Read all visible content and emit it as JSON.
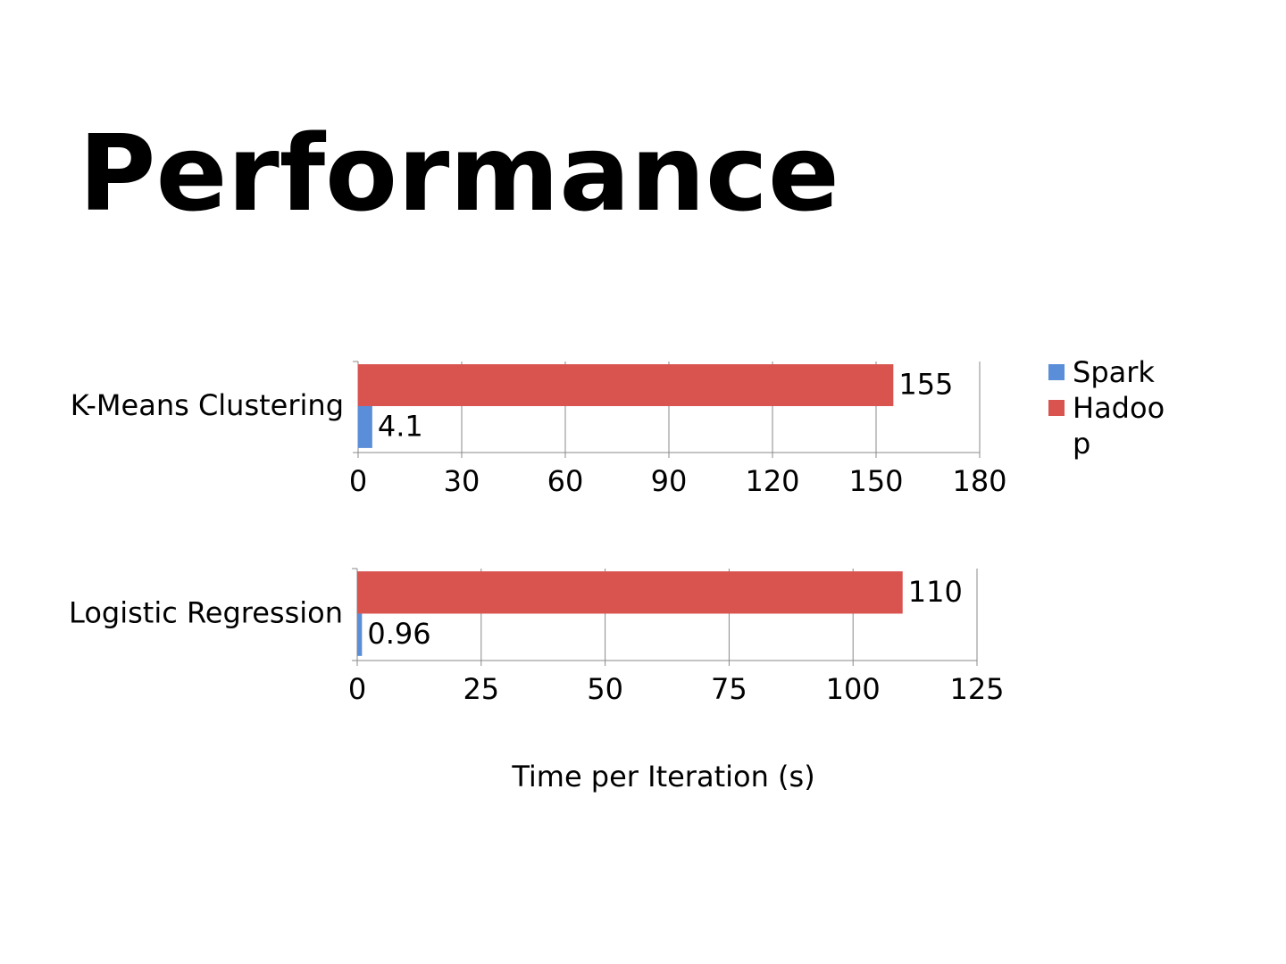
{
  "title": "Performance",
  "chart_data": [
    {
      "type": "bar",
      "orientation": "horizontal",
      "categories": [
        "K-Means Clustering"
      ],
      "series": [
        {
          "name": "Spark",
          "color": "#5a8ed8",
          "values": [
            4.1
          ]
        },
        {
          "name": "Hadoop",
          "color": "#d9534f",
          "values": [
            155
          ]
        }
      ],
      "xlim": [
        0,
        180
      ],
      "xticks": [
        0,
        30,
        60,
        90,
        120,
        150,
        180
      ],
      "grid": true
    },
    {
      "type": "bar",
      "orientation": "horizontal",
      "categories": [
        "Logistic Regression"
      ],
      "series": [
        {
          "color": "#5a8ed8",
          "values": [
            0.96
          ]
        },
        {
          "color": "#d9534f",
          "values": [
            110
          ]
        }
      ],
      "xlim": [
        0,
        125
      ],
      "xticks": [
        0,
        25,
        50,
        75,
        100,
        125
      ],
      "grid": true,
      "xlabel": "Time per Iteration (s)"
    }
  ]
}
